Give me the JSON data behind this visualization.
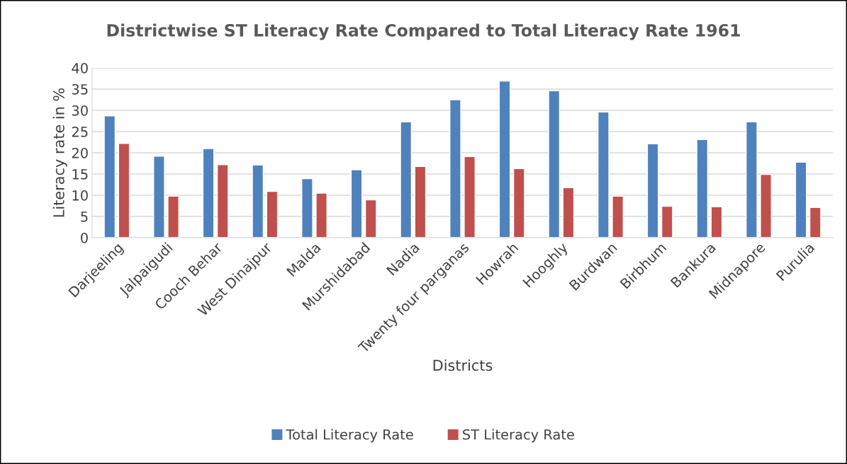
{
  "chart_data": {
    "type": "bar",
    "title": "Districtwise ST Literacy Rate Compared to Total Literacy Rate 1961",
    "xlabel": "Districts",
    "ylabel": "Literacy rate in %",
    "categories": [
      "Darjeeling",
      "Jalpaigudi",
      "Cooch Behar",
      "West Dinajpur",
      "Malda",
      "Murshidabad",
      "Nadia",
      "Twenty four parganas",
      "Howrah",
      "Hooghly",
      "Burdwan",
      "Birbhum",
      "Bankura",
      "Midnapore",
      "Purulia"
    ],
    "series": [
      {
        "name": "Total Literacy Rate",
        "color": "#4f81bd",
        "values": [
          28.7,
          19.2,
          21.0,
          17.1,
          13.9,
          16.0,
          27.3,
          32.5,
          36.9,
          34.6,
          29.6,
          22.1,
          23.1,
          27.3,
          17.8
        ]
      },
      {
        "name": "ST Literacy Rate",
        "color": "#c0504d",
        "values": [
          22.2,
          9.8,
          17.2,
          10.9,
          10.5,
          8.9,
          16.8,
          19.1,
          16.3,
          11.8,
          9.8,
          7.4,
          7.3,
          14.9,
          7.1
        ]
      }
    ],
    "ylim": [
      0,
      40
    ],
    "yticks": [
      0,
      5,
      10,
      15,
      20,
      25,
      30,
      35,
      40
    ],
    "grid": "y",
    "legend": "bottom"
  }
}
